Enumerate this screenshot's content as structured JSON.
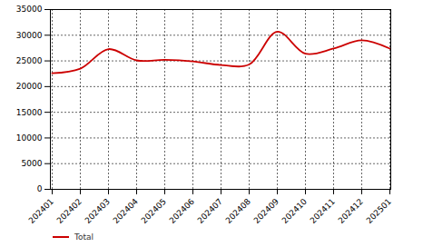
{
  "chart_data": {
    "type": "line",
    "categories": [
      "202401",
      "202402",
      "202403",
      "202404",
      "202405",
      "202406",
      "202407",
      "202408",
      "202409",
      "202410",
      "202411",
      "202412",
      "202501"
    ],
    "series": [
      {
        "name": "Total",
        "color": "#cc0000",
        "values": [
          22600,
          23500,
          27300,
          25100,
          25200,
          24900,
          24200,
          24300,
          30700,
          26400,
          27400,
          29000,
          27400
        ]
      }
    ],
    "ylim": [
      0,
      35000
    ],
    "yticks": [
      0,
      5000,
      10000,
      15000,
      20000,
      25000,
      30000,
      35000
    ],
    "grid": true,
    "legend": "bottom"
  }
}
